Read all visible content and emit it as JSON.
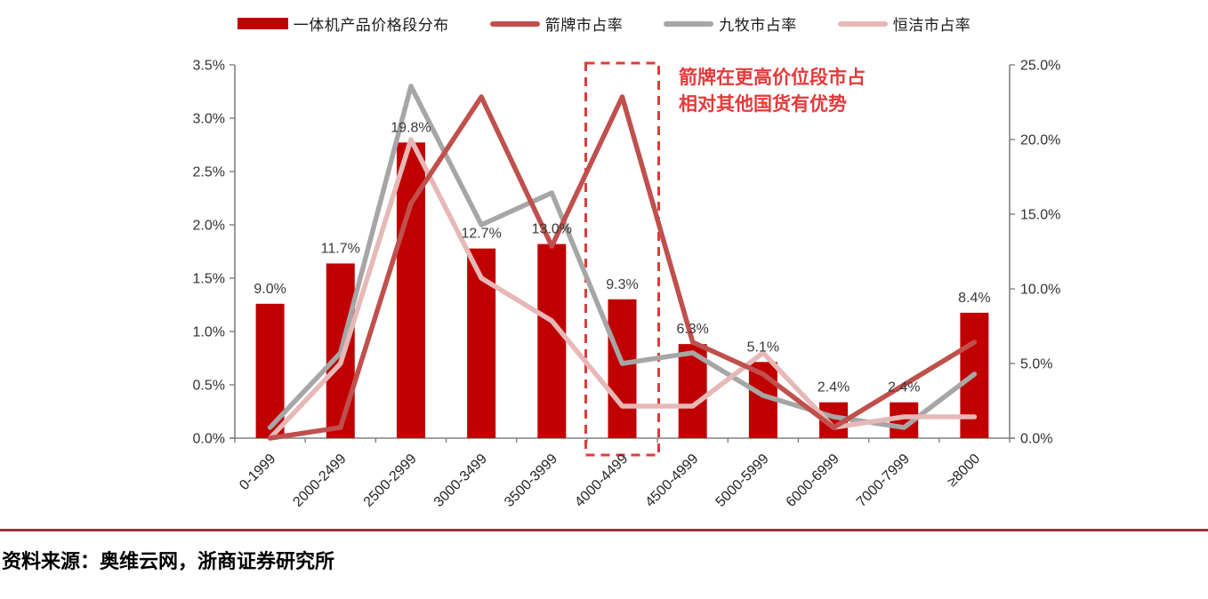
{
  "legend": [
    {
      "label": "一体机产品价格段分布",
      "color": "#C00000",
      "marker": "bar"
    },
    {
      "label": "箭牌市占率",
      "color": "#C0504D",
      "marker": "line"
    },
    {
      "label": "九牧市占率",
      "color": "#A6A6A6",
      "marker": "line"
    },
    {
      "label": "恒洁市占率",
      "color": "#E6B9B8",
      "marker": "line"
    }
  ],
  "chart_data": {
    "type": "combo-bar-line",
    "categories": [
      "0-1999",
      "2000-2499",
      "2500-2999",
      "3000-3499",
      "3500-3999",
      "4000-4499",
      "4500-4999",
      "5000-5999",
      "6000-6999",
      "7000-7999",
      "≥8000"
    ],
    "bar_series": {
      "name": "一体机产品价格段分布",
      "axis": "right",
      "color": "#C00000",
      "values": [
        9.0,
        11.7,
        19.8,
        12.7,
        13.0,
        9.3,
        6.3,
        5.1,
        2.4,
        2.4,
        8.4
      ],
      "labels": [
        "9.0%",
        "11.7%",
        "19.8%",
        "12.7%",
        "13.0%",
        "9.3%",
        "6.3%",
        "5.1%",
        "2.4%",
        "2.4%",
        "8.4%"
      ]
    },
    "line_series": [
      {
        "name": "九牧市占率",
        "axis": "left",
        "color": "#A6A6A6",
        "values": [
          0.1,
          0.8,
          3.3,
          2.0,
          2.3,
          0.7,
          0.8,
          0.4,
          0.2,
          0.1,
          0.6
        ]
      },
      {
        "name": "恒洁市占率",
        "axis": "left",
        "color": "#E6B9B8",
        "values": [
          0.0,
          0.7,
          2.8,
          1.5,
          1.1,
          0.3,
          0.3,
          0.8,
          0.1,
          0.2,
          0.2
        ]
      },
      {
        "name": "箭牌市占率",
        "axis": "left",
        "color": "#C0504D",
        "values": [
          0.0,
          0.1,
          2.2,
          3.2,
          1.8,
          3.2,
          0.9,
          0.6,
          0.1,
          0.5,
          0.9
        ]
      }
    ],
    "left_axis": {
      "min": 0,
      "max": 3.5,
      "ticks": [
        "0.0%",
        "0.5%",
        "1.0%",
        "1.5%",
        "2.0%",
        "2.5%",
        "3.0%",
        "3.5%"
      ]
    },
    "right_axis": {
      "min": 0,
      "max": 25,
      "ticks": [
        "0.0%",
        "5.0%",
        "10.0%",
        "15.0%",
        "20.0%",
        "25.0%"
      ]
    },
    "highlight": {
      "category": "4000-4499",
      "category_index": 5,
      "color": "#E23B3B"
    },
    "annotation": {
      "color": "#E23B3B",
      "lines": [
        "箭牌在更高价位段市占",
        "相对其他国货有优势"
      ]
    },
    "grid": false,
    "legend_position": "top"
  },
  "footer": {
    "rule_color": "#943634",
    "source_text": "资料来源：奥维云网，浙商证券研究所"
  }
}
